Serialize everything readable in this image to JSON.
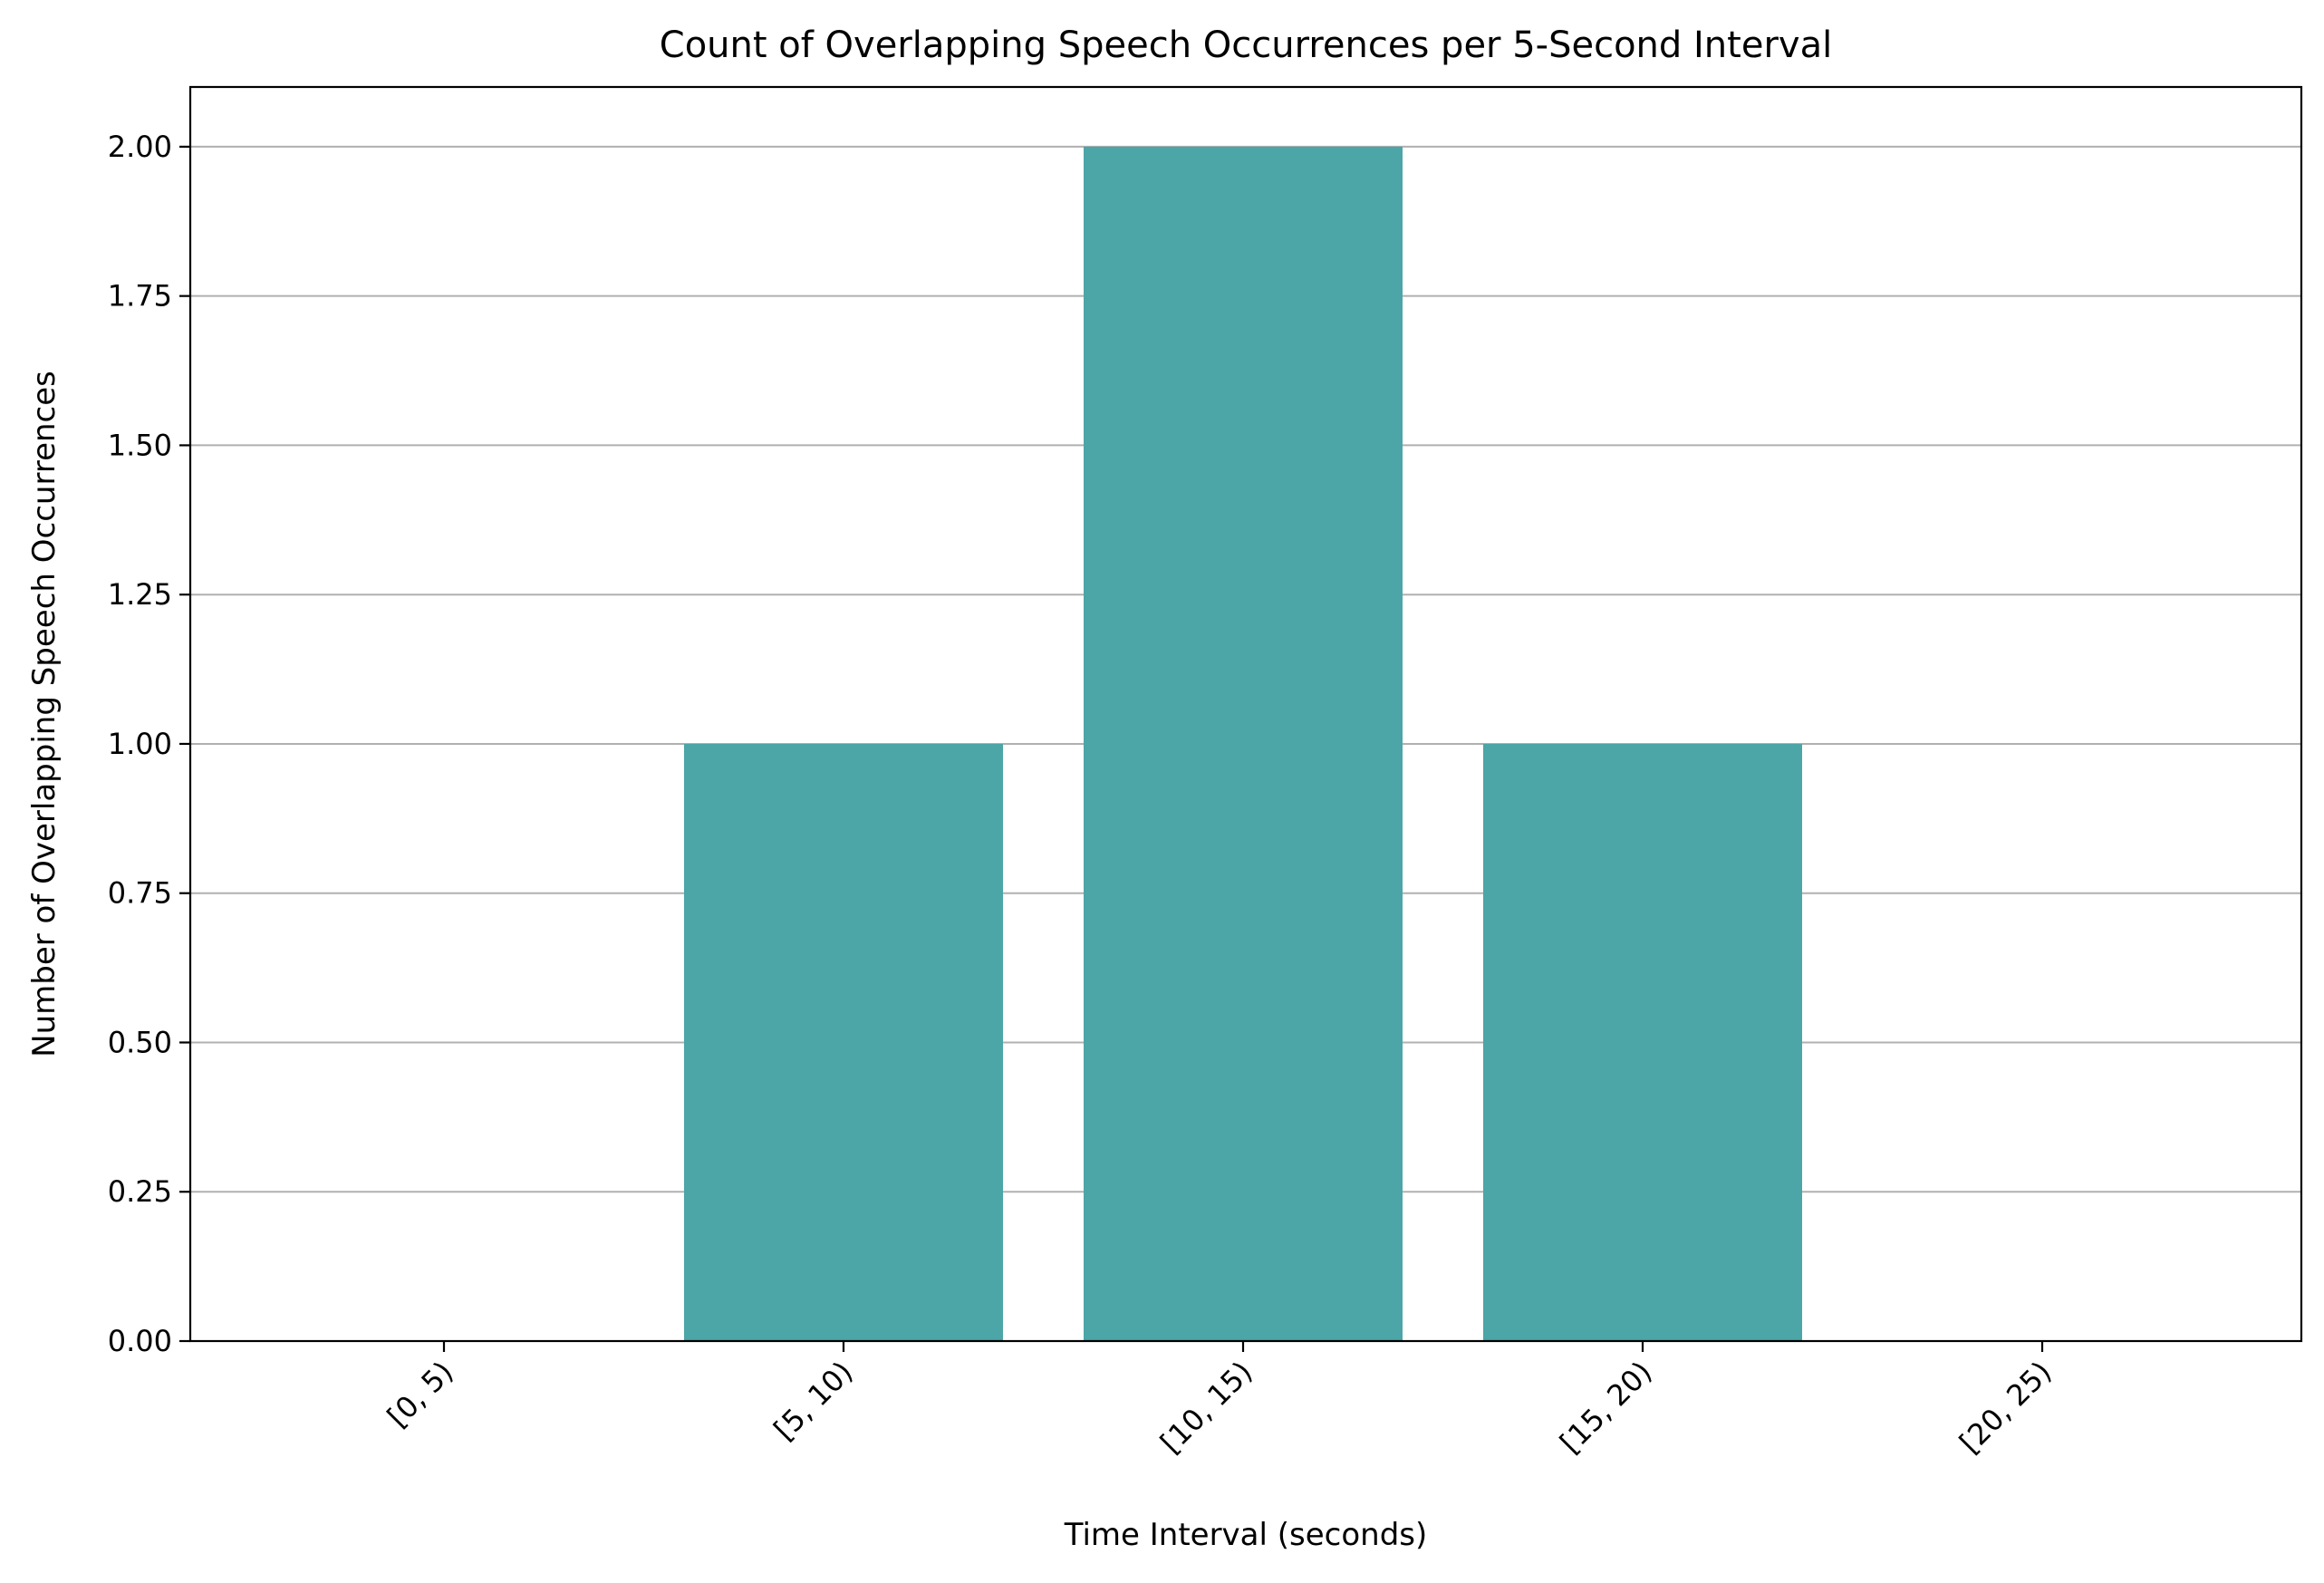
{
  "chart_data": {
    "type": "bar",
    "title": "Count of Overlapping Speech Occurrences per 5-Second Interval",
    "xlabel": "Time Interval (seconds)",
    "ylabel": "Number of Overlapping Speech Occurrences",
    "categories": [
      "[0, 5)",
      "[5, 10)",
      "[10, 15)",
      "[15, 20)",
      "[20, 25)"
    ],
    "values": [
      0,
      1,
      2,
      1,
      0
    ],
    "ylim": [
      0,
      2.1
    ],
    "yticks": [
      "0.00",
      "0.25",
      "0.50",
      "0.75",
      "1.00",
      "1.25",
      "1.50",
      "1.75",
      "2.00"
    ],
    "grid": "y-axis",
    "legend": "none",
    "colors": {
      "bar": "#4ca5a6",
      "grid": "#b0b0b0",
      "axis": "#000000"
    }
  }
}
